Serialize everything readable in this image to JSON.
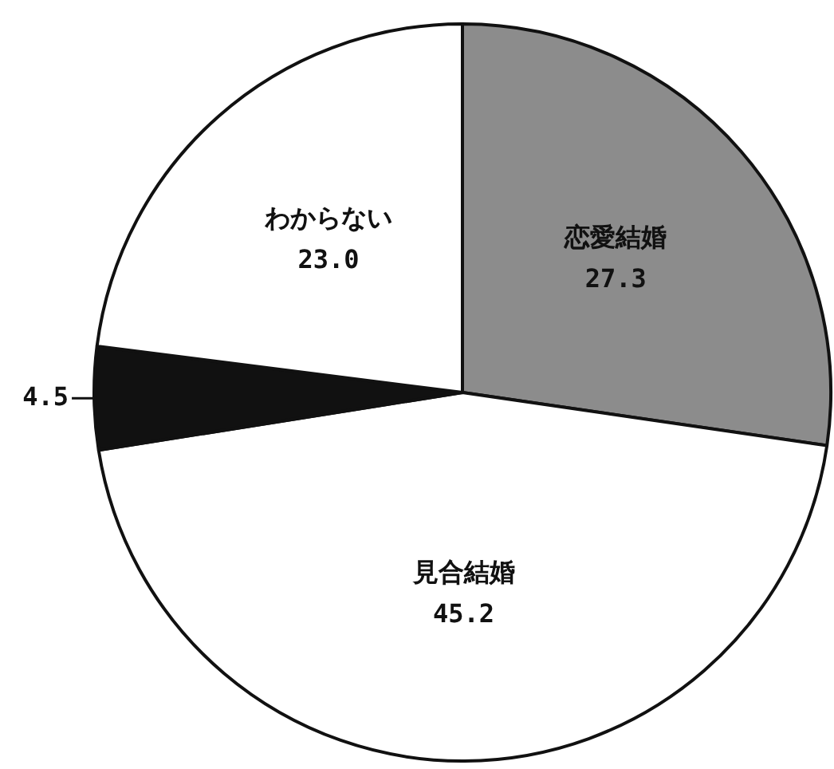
{
  "chart_data": {
    "type": "pie",
    "categories": [
      "恋愛結婚",
      "見合結婚",
      null,
      "わからない"
    ],
    "values": [
      27.3,
      45.2,
      4.5,
      23.0
    ],
    "value_labels": [
      "27.3",
      "45.2",
      "4.5",
      "23.0"
    ],
    "colors": [
      "#8c8c8c",
      "#ffffff",
      "#111111",
      "#ffffff"
    ]
  }
}
